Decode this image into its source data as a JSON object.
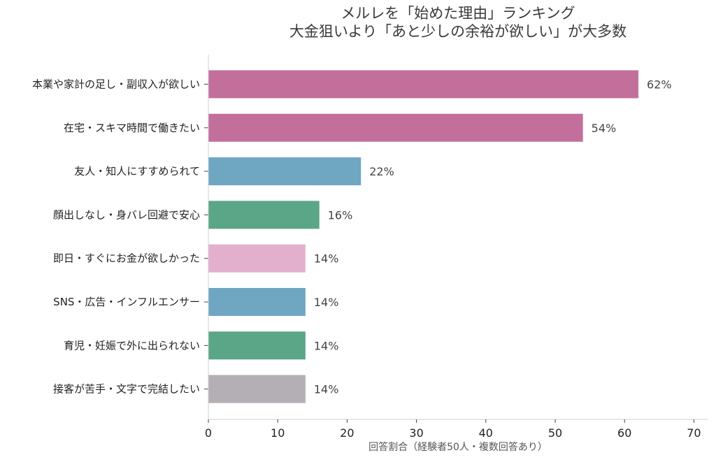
{
  "chart_data": {
    "type": "bar",
    "orientation": "horizontal",
    "title_lines": [
      "メルレを「始めた理由」ランキング",
      "大金狙いより「あと少しの余裕が欲しい」が大多数"
    ],
    "xlabel": "回答割合（経験者50人・複数回答あり）",
    "ylabel": "",
    "xlim": [
      0,
      70
    ],
    "xticks": [
      0,
      10,
      20,
      30,
      40,
      50,
      60,
      70
    ],
    "grid": false,
    "legend": "none",
    "value_suffix": "%",
    "categories": [
      "本業や家計の足し・副収入が欲しい",
      "在宅・スキマ時間で働きたい",
      "友人・知人にすすめられて",
      "顔出しなし・身バレ回避で安心",
      "即日・すぐにお金が欲しかった",
      "SNS・広告・インフルエンサー",
      "育児・妊娠で外に出られない",
      "接客が苦手・文字で完結したい"
    ],
    "values": [
      62,
      54,
      22,
      16,
      14,
      14,
      14,
      14
    ],
    "labels": [
      "62%",
      "54%",
      "22%",
      "16%",
      "14%",
      "14%",
      "14%",
      "14%"
    ],
    "colors": [
      "#c2709b",
      "#c2709b",
      "#6fa7c3",
      "#5ba686",
      "#e2b0cd",
      "#6fa7c3",
      "#5ba686",
      "#b4aeb5"
    ]
  }
}
